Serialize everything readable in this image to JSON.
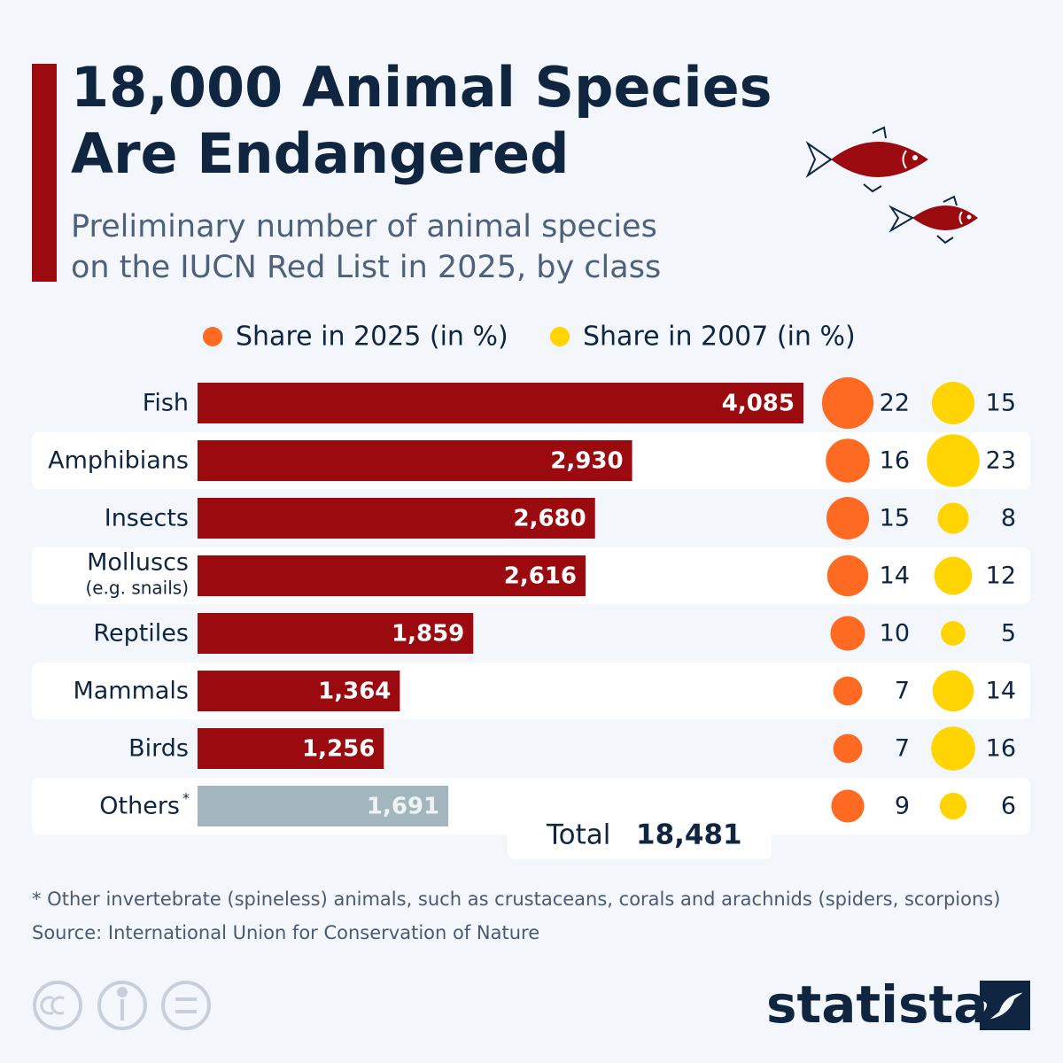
{
  "header": {
    "title_lines": [
      "18,000 Animal Species",
      "Are Endangered"
    ],
    "subtitle_lines": [
      "Preliminary number of animal species",
      "on the IUCN Red List in 2025, by class"
    ]
  },
  "chart_data": {
    "type": "bar",
    "categories": [
      "Fish",
      "Amphibians",
      "Insects",
      "Molluscs",
      "Reptiles",
      "Mammals",
      "Birds",
      "Others"
    ],
    "category_notes": [
      null,
      null,
      null,
      "(e.g. snails)",
      null,
      null,
      null,
      "*"
    ],
    "values": [
      4085,
      2930,
      2680,
      2616,
      1859,
      1364,
      1256,
      1691
    ],
    "value_labels": [
      "4,085",
      "2,930",
      "2,680",
      "2,616",
      "1,859",
      "1,364",
      "1,256",
      "1,691"
    ],
    "colors": [
      "#9b0a0f",
      "#9b0a0f",
      "#9b0a0f",
      "#9b0a0f",
      "#9b0a0f",
      "#9b0a0f",
      "#9b0a0f",
      "#a3b6be"
    ],
    "bubble_series": [
      {
        "name": "Share in 2025 (in %)",
        "color": "#ff6a22",
        "values": [
          22,
          16,
          15,
          14,
          10,
          7,
          7,
          9
        ]
      },
      {
        "name": "Share in 2007 (in %)",
        "color": "#ffd400",
        "values": [
          15,
          23,
          8,
          12,
          5,
          14,
          16,
          6
        ]
      }
    ],
    "total": {
      "label": "Total",
      "value": 18481,
      "value_label": "18,481"
    }
  },
  "footer": {
    "footnote": "* Other invertebrate (spineless) animals, such as crustaceans, corals and arachnids (spiders, scorpions)",
    "source": "Source: International Union for Conservation of Nature",
    "brand": "statista"
  }
}
